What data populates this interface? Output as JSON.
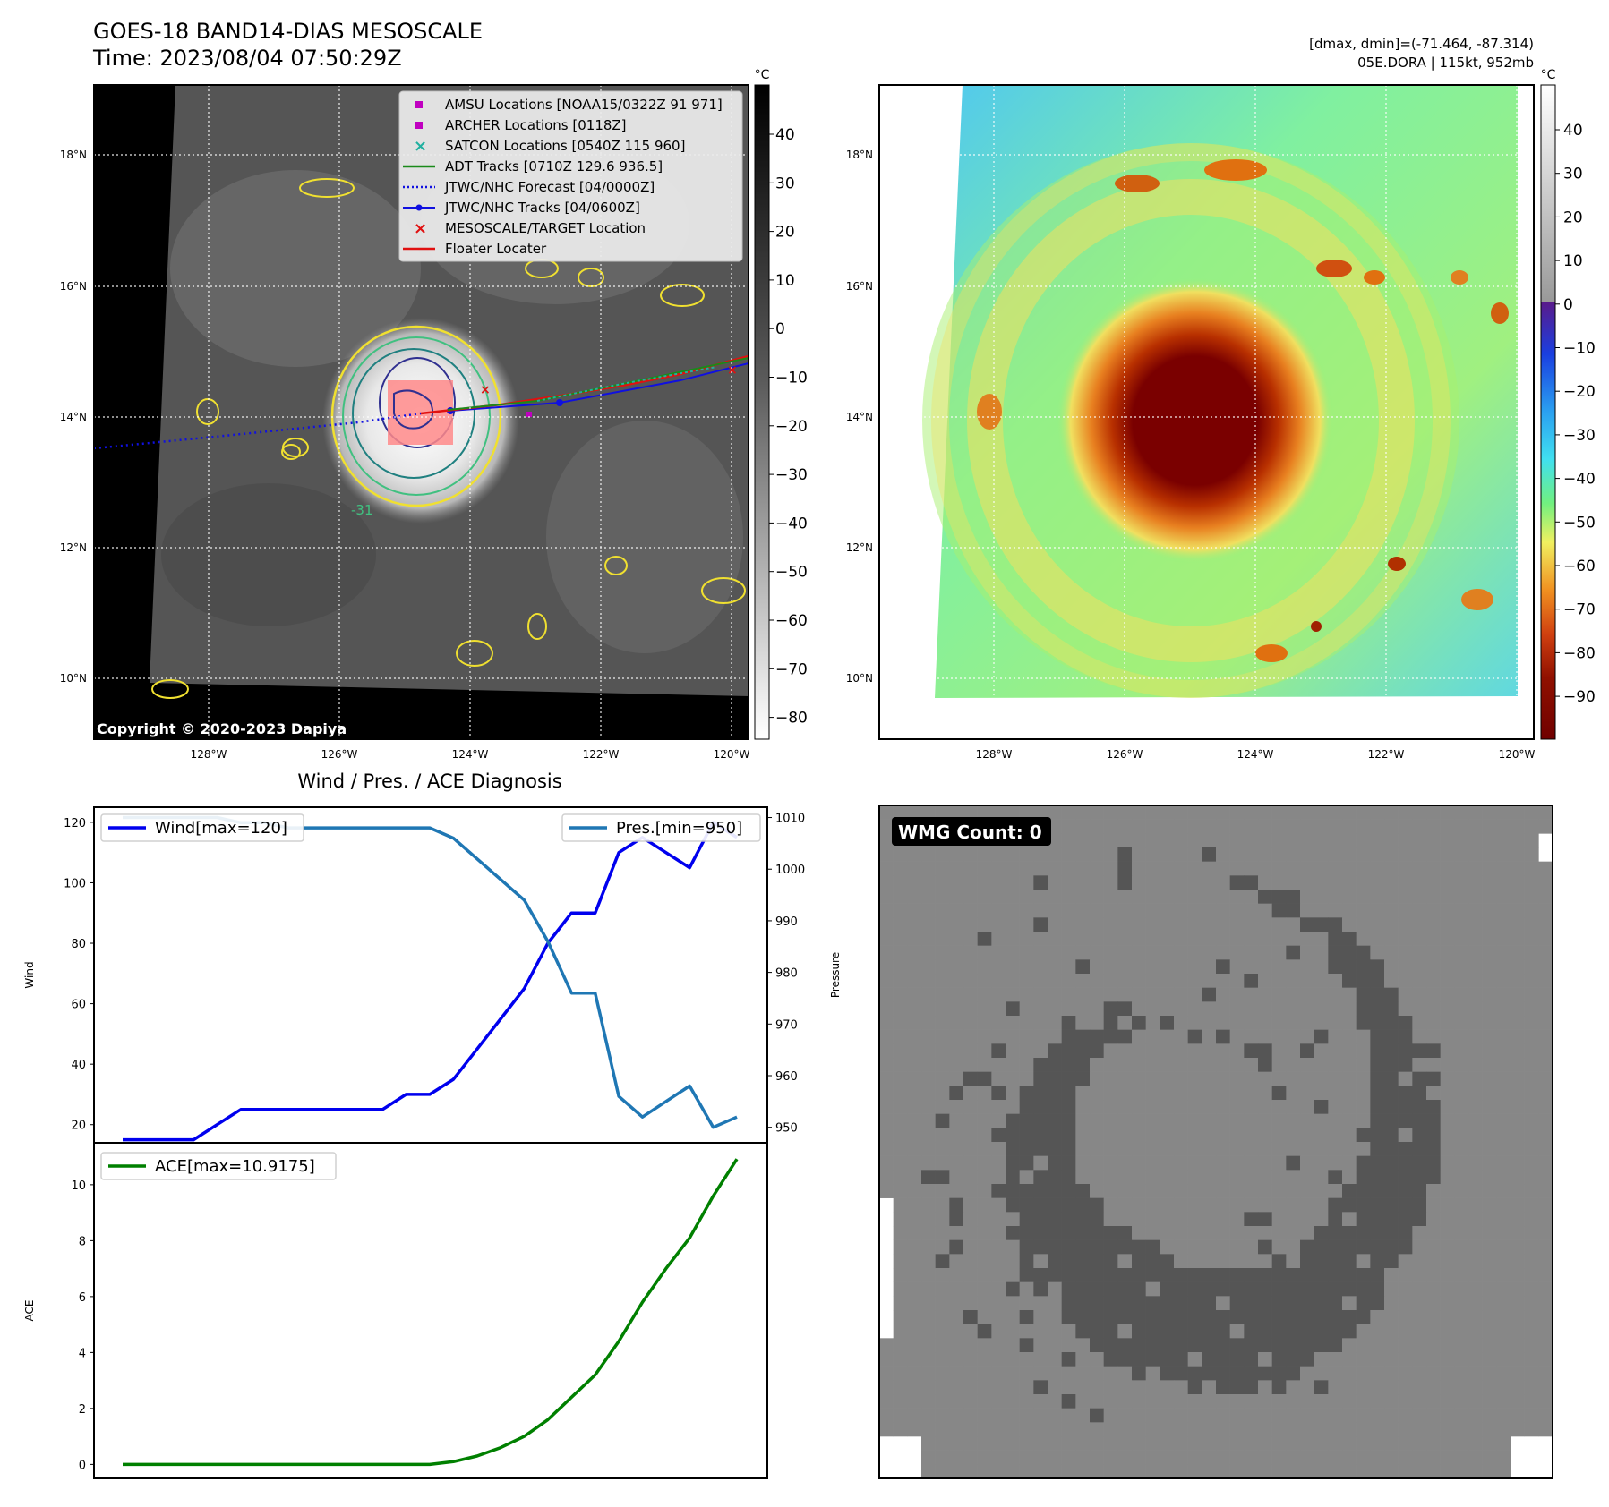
{
  "header": {
    "title": "GOES-18 BAND14-DIAS MESOSCALE",
    "time": "Time: 2023/08/04 07:50:29Z",
    "dmax_dmin": "[dmax, dmin]=(-71.464, -87.314)",
    "storm": "05E.DORA | 115kt, 952mb",
    "copyright": "Copyright © 2020-2023 Dapiya"
  },
  "maps": {
    "lat_labels": [
      "18°N",
      "16°N",
      "14°N",
      "12°N",
      "10°N"
    ],
    "lon_labels": [
      "128°W",
      "126°W",
      "124°W",
      "122°W",
      "120°W"
    ],
    "contour_label": "-31",
    "colorbar_gray": {
      "unit": "°C",
      "ticks": [
        "40",
        "30",
        "20",
        "10",
        "0",
        "−10",
        "−20",
        "−30",
        "−40",
        "−50",
        "−60",
        "−70",
        "−80"
      ]
    },
    "colorbar_color": {
      "unit": "°C",
      "ticks": [
        "40",
        "30",
        "20",
        "10",
        "0",
        "−10",
        "−20",
        "−30",
        "−40",
        "−50",
        "−60",
        "−70",
        "−80",
        "−90"
      ]
    },
    "legend": [
      {
        "label": "AMSU Locations [NOAA15/0322Z 91 971]",
        "color": "#c000c0",
        "marker": "square"
      },
      {
        "label": "ARCHER Locations [0118Z]",
        "color": "#c000c0",
        "marker": "square"
      },
      {
        "label": "SATCON Locations [0540Z 115 960]",
        "color": "#20b0a0",
        "marker": "x"
      },
      {
        "label": "ADT Tracks [0710Z 129.6 936.5]",
        "color": "#1a8a1a",
        "marker": "line"
      },
      {
        "label": "JTWC/NHC Forecast [04/0000Z]",
        "color": "#1010e0",
        "marker": "dotted"
      },
      {
        "label": "JTWC/NHC Tracks [04/0600Z]",
        "color": "#1010e0",
        "marker": "dotline"
      },
      {
        "label": "MESOSCALE/TARGET Location",
        "color": "#e01010",
        "marker": "x"
      },
      {
        "label": "Floater Locater",
        "color": "#e01010",
        "marker": "line"
      }
    ]
  },
  "wmg": {
    "label": "WMG Count: 0",
    "gray_dark": "#555555",
    "gray_light": "#878787"
  },
  "chart_data": [
    {
      "type": "line",
      "title": "Wind / Pres. / ACE Diagnosis",
      "ylabel": "Wind",
      "ylim": [
        14,
        125
      ],
      "yticks": [
        20,
        40,
        60,
        80,
        100,
        120
      ],
      "series": [
        {
          "name": "Wind[max=120]",
          "color": "#0000ee",
          "values": [
            15,
            15,
            15,
            15,
            20,
            25,
            25,
            25,
            25,
            25,
            25,
            25,
            30,
            30,
            35,
            45,
            55,
            65,
            80,
            90,
            90,
            110,
            115,
            110,
            105,
            120,
            115
          ]
        }
      ]
    },
    {
      "type": "line",
      "ylabel": "Pressure",
      "ylim": [
        947,
        1012
      ],
      "yticks": [
        950,
        960,
        970,
        980,
        990,
        1000,
        1010
      ],
      "series": [
        {
          "name": "Pres.[min=950]",
          "color": "#1f77b4",
          "values": [
            1010,
            1010,
            1010,
            1010,
            1010,
            1009,
            1009,
            1008,
            1008,
            1008,
            1008,
            1008,
            1008,
            1008,
            1006,
            1002,
            998,
            994,
            986,
            976,
            976,
            956,
            952,
            955,
            958,
            950,
            952
          ]
        }
      ]
    },
    {
      "type": "line",
      "ylabel": "ACE",
      "ylim": [
        -0.5,
        11.5
      ],
      "yticks": [
        0,
        2,
        4,
        6,
        8,
        10
      ],
      "series": [
        {
          "name": "ACE[max=10.9175]",
          "color": "#008000",
          "values": [
            0,
            0,
            0,
            0,
            0,
            0,
            0,
            0,
            0,
            0,
            0,
            0,
            0,
            0,
            0.1,
            0.3,
            0.6,
            1.0,
            1.6,
            2.4,
            3.2,
            4.4,
            5.8,
            7.0,
            8.1,
            9.6,
            10.9175
          ]
        }
      ]
    }
  ]
}
